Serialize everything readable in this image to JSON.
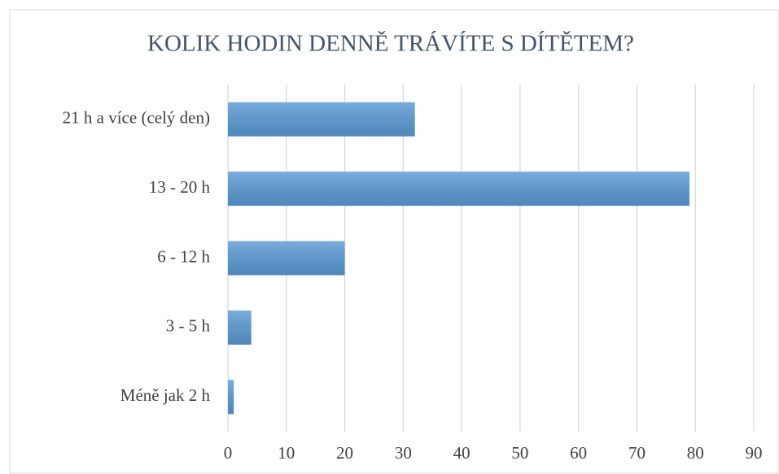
{
  "chart_data": {
    "type": "bar",
    "orientation": "horizontal",
    "title": "KOLIK HODIN DENNĚ TRÁVÍTE S DÍTĚTEM?",
    "categories": [
      "21 h a více (celý den)",
      "13 - 20 h",
      "6 - 12 h",
      "3 - 5 h",
      "Méně jak 2 h"
    ],
    "values": [
      32,
      79,
      20,
      4,
      1
    ],
    "color": "#5b9bd5",
    "xlim": [
      0,
      90
    ],
    "xticks": [
      0,
      10,
      20,
      30,
      40,
      50,
      60,
      70,
      80,
      90
    ],
    "grid": true
  }
}
